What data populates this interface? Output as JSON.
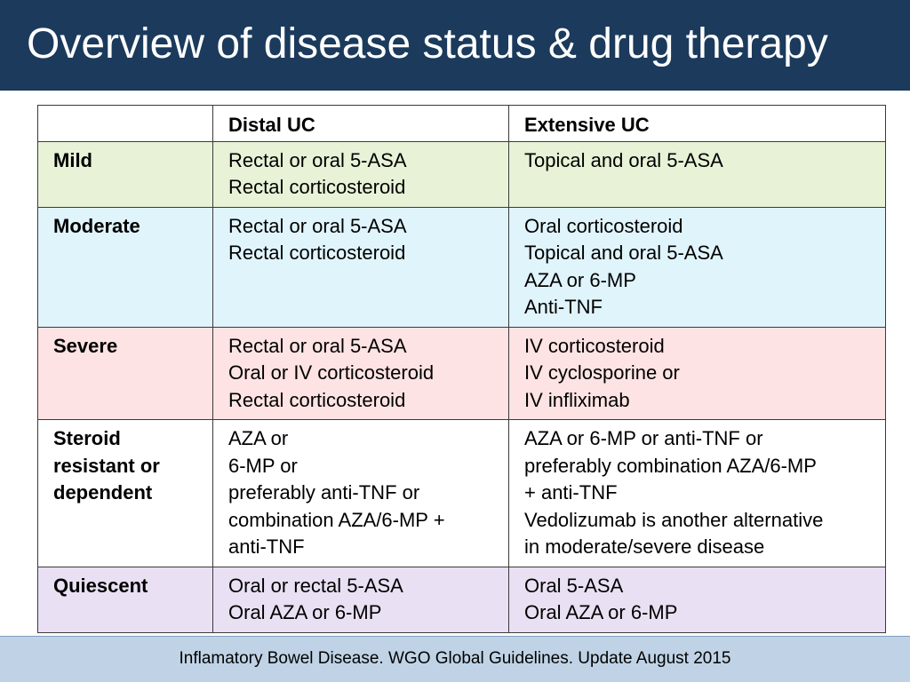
{
  "slide": {
    "title": "Overview of disease status & drug therapy",
    "footer": "Inflamatory Bowel Disease. WGO Global Guidelines. Update August 2015"
  },
  "table": {
    "header": [
      "",
      "Distal UC",
      "Extensive UC"
    ],
    "rows": [
      {
        "label": [
          "Mild"
        ],
        "bg": "#e7f2d7",
        "distal": [
          "Rectal or oral 5-ASA",
          "Rectal corticosteroid"
        ],
        "extensive": [
          "Topical and oral 5-ASA"
        ]
      },
      {
        "label": [
          "Moderate"
        ],
        "bg": "#e0f4fb",
        "distal": [
          "Rectal or oral 5-ASA",
          "Rectal corticosteroid"
        ],
        "extensive": [
          "Oral corticosteroid",
          "Topical and oral 5-ASA",
          "AZA or 6-MP",
          "Anti-TNF"
        ]
      },
      {
        "label": [
          "Severe"
        ],
        "bg": "#fde3e3",
        "distal": [
          "Rectal or oral 5-ASA",
          "Oral or IV corticosteroid",
          "Rectal corticosteroid"
        ],
        "extensive": [
          "IV corticosteroid",
          "IV cyclosporine or",
          "IV infliximab"
        ]
      },
      {
        "label": [
          "Steroid",
          "resistant or",
          "dependent"
        ],
        "bg": "#ffffff",
        "distal": [
          "AZA or",
          "6-MP or",
          "preferably anti-TNF or",
          "combination AZA/6-MP +",
          "anti-TNF"
        ],
        "extensive": [
          "AZA or 6-MP or anti-TNF or",
          "preferably combination AZA/6-MP",
          "+ anti-TNF",
          "Vedolizumab is another alternative",
          "in moderate/severe disease"
        ]
      },
      {
        "label": [
          "Quiescent"
        ],
        "bg": "#e9e0f3",
        "distal": [
          "Oral or rectal 5-ASA",
          "Oral AZA or 6-MP"
        ],
        "extensive": [
          "Oral 5-ASA",
          "Oral AZA or 6-MP"
        ]
      }
    ]
  }
}
